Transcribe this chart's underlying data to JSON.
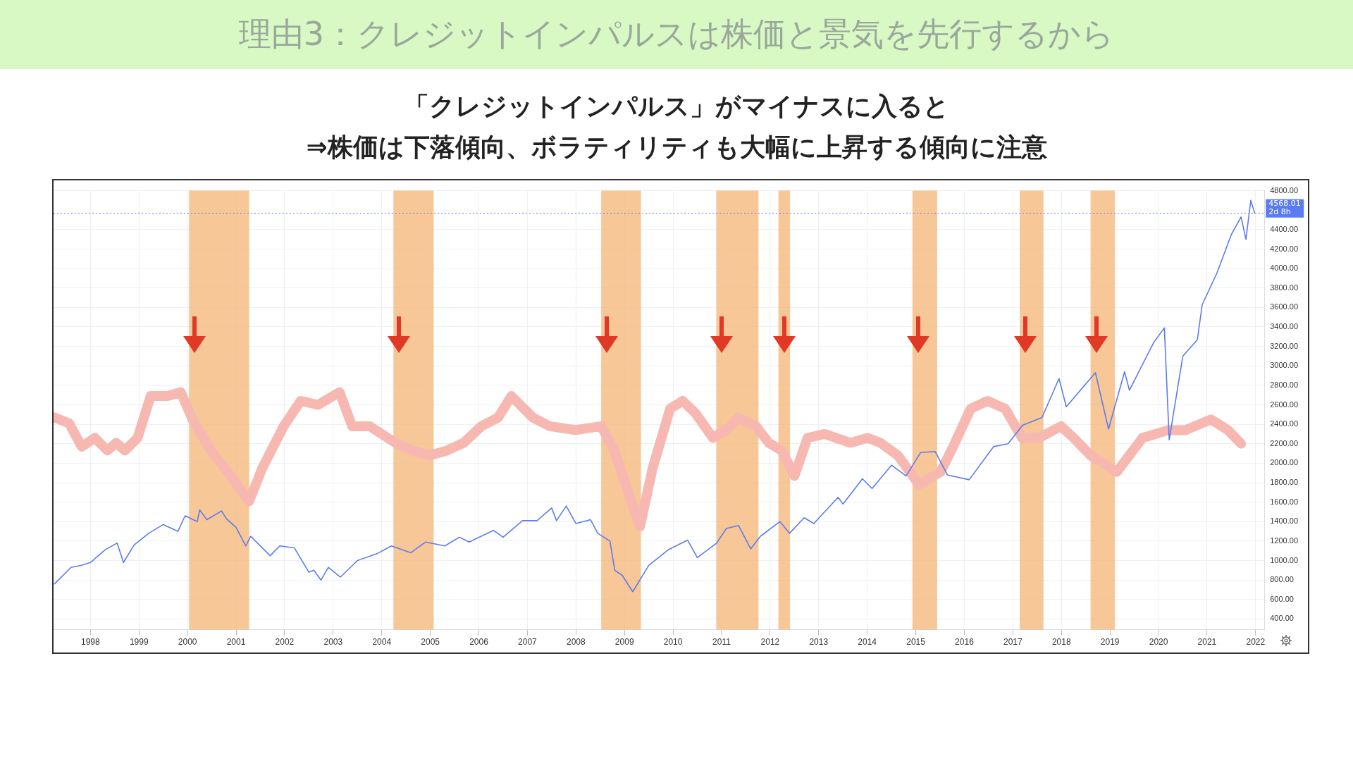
{
  "chart_data": {
    "type": "line",
    "title": "理由3：クレジットインパルスは株価と景気を先行するから",
    "subtitle": "「クレジットインパルス」がマイナスに入ると\n⇒株価は下落傾向、ボラティリティも大幅に上昇する傾向に注意",
    "xlim": [
      1997.24,
      2022.18
    ],
    "xticks": [
      1998,
      1999,
      2000,
      2001,
      2002,
      2003,
      2004,
      2005,
      2006,
      2007,
      2008,
      2009,
      2010,
      2011,
      2012,
      2013,
      2014,
      2015,
      2016,
      2017,
      2018,
      2019,
      2020,
      2021,
      2022
    ],
    "ylim": [
      290,
      4800
    ],
    "yticks": [
      {
        "value": 400,
        "label": "400.00"
      },
      {
        "value": 600,
        "label": "600.00"
      },
      {
        "value": 800,
        "label": "800.00"
      },
      {
        "value": 1000,
        "label": "1000.00"
      },
      {
        "value": 1200,
        "label": "1200.00"
      },
      {
        "value": 1400,
        "label": "1400.00"
      },
      {
        "value": 1600,
        "label": "1600.00"
      },
      {
        "value": 1800,
        "label": "1800.00"
      },
      {
        "value": 2000,
        "label": "2000.00"
      },
      {
        "value": 2200,
        "label": "2200.00"
      },
      {
        "value": 2400,
        "label": "2400.00"
      },
      {
        "value": 2600,
        "label": "2600.00"
      },
      {
        "value": 2800,
        "label": "2800.00"
      },
      {
        "value": 3000,
        "label": "3000.00"
      },
      {
        "value": 3200,
        "label": "3200.00"
      },
      {
        "value": 3400,
        "label": "3400.00"
      },
      {
        "value": 3600,
        "label": "3600.00"
      },
      {
        "value": 3800,
        "label": "3800.00"
      },
      {
        "value": 4000,
        "label": "4000.00"
      },
      {
        "value": 4200,
        "label": "4200.00"
      },
      {
        "value": 4400,
        "label": "4400.00"
      },
      {
        "value": 4800,
        "label": "4800.00"
      }
    ],
    "grid": true,
    "marker": "none",
    "line_style": "solid",
    "series": [
      {
        "color": "#f7b8b2",
        "x": [
          1997.26,
          1997.56,
          1997.82,
          1998.09,
          1998.35,
          1998.53,
          1998.71,
          1998.97,
          1999.24,
          1999.59,
          1999.86,
          2000.12,
          2000.48,
          2000.83,
          2001.27,
          2001.54,
          2001.98,
          2002.33,
          2002.69,
          2003.13,
          2003.39,
          2003.75,
          2004.28,
          2004.63,
          2004.99,
          2005.34,
          2005.69,
          2006.05,
          2006.4,
          2006.67,
          2007.11,
          2007.46,
          2007.99,
          2008.52,
          2008.79,
          2009.14,
          2009.32,
          2009.58,
          2009.94,
          2010.2,
          2010.47,
          2010.82,
          2011.09,
          2011.35,
          2011.71,
          2011.97,
          2012.24,
          2012.5,
          2012.77,
          2013.12,
          2013.65,
          2014.01,
          2014.27,
          2014.63,
          2015.07,
          2015.51,
          2015.77,
          2016.13,
          2016.48,
          2016.84,
          2017.19,
          2017.54,
          2017.99,
          2018.25,
          2018.6,
          2019.14,
          2019.67,
          2020.2,
          2020.55,
          2021.08,
          2021.43,
          2021.7
        ],
        "values": [
          2470,
          2410,
          2170,
          2260,
          2130,
          2210,
          2130,
          2260,
          2690,
          2690,
          2730,
          2430,
          2130,
          1910,
          1610,
          1950,
          2380,
          2640,
          2600,
          2730,
          2380,
          2380,
          2210,
          2130,
          2080,
          2130,
          2210,
          2380,
          2470,
          2690,
          2470,
          2380,
          2340,
          2380,
          2130,
          1610,
          1350,
          1950,
          2560,
          2640,
          2510,
          2260,
          2340,
          2470,
          2380,
          2210,
          2130,
          1870,
          2260,
          2300,
          2210,
          2260,
          2210,
          2080,
          1780,
          1910,
          2170,
          2560,
          2640,
          2560,
          2260,
          2260,
          2380,
          2260,
          2080,
          1910,
          2260,
          2340,
          2340,
          2450,
          2340,
          2200
        ]
      },
      {
        "color": "#5b7cf0",
        "x": [
          1997.26,
          1997.6,
          1997.8,
          1998.0,
          1998.3,
          1998.55,
          1998.68,
          1998.9,
          1999.2,
          1999.5,
          1999.8,
          1999.95,
          2000.2,
          2000.25,
          2000.4,
          2000.7,
          2000.8,
          2001.0,
          2001.2,
          2001.3,
          2001.7,
          2001.9,
          2002.2,
          2002.5,
          2002.6,
          2002.75,
          2002.9,
          2003.15,
          2003.5,
          2003.9,
          2004.2,
          2004.6,
          2004.9,
          2005.3,
          2005.6,
          2005.8,
          2006.3,
          2006.5,
          2006.9,
          2007.2,
          2007.5,
          2007.6,
          2007.8,
          2008.0,
          2008.3,
          2008.45,
          2008.7,
          2008.8,
          2008.95,
          2009.17,
          2009.5,
          2009.9,
          2010.3,
          2010.5,
          2010.9,
          2011.1,
          2011.35,
          2011.6,
          2011.8,
          2012.2,
          2012.4,
          2012.7,
          2012.9,
          2013.4,
          2013.5,
          2013.9,
          2014.1,
          2014.5,
          2014.8,
          2015.1,
          2015.4,
          2015.65,
          2016.1,
          2016.6,
          2016.9,
          2017.2,
          2017.6,
          2017.95,
          2018.1,
          2018.7,
          2018.97,
          2019.3,
          2019.4,
          2019.9,
          2020.12,
          2020.22,
          2020.5,
          2020.8,
          2020.9,
          2021.2,
          2021.5,
          2021.7,
          2021.8,
          2021.9,
          2021.98
        ],
        "values": [
          760,
          930,
          950,
          980,
          1110,
          1180,
          980,
          1160,
          1280,
          1370,
          1300,
          1460,
          1400,
          1520,
          1420,
          1510,
          1430,
          1340,
          1150,
          1250,
          1050,
          1150,
          1130,
          880,
          900,
          800,
          930,
          830,
          1000,
          1070,
          1150,
          1080,
          1190,
          1150,
          1240,
          1190,
          1310,
          1240,
          1410,
          1410,
          1540,
          1410,
          1560,
          1380,
          1420,
          1280,
          1200,
          900,
          850,
          680,
          950,
          1110,
          1210,
          1030,
          1180,
          1330,
          1360,
          1120,
          1250,
          1400,
          1280,
          1440,
          1380,
          1650,
          1580,
          1840,
          1740,
          1980,
          1870,
          2110,
          2120,
          1880,
          1830,
          2170,
          2200,
          2390,
          2470,
          2870,
          2580,
          2930,
          2350,
          2940,
          2750,
          3240,
          3390,
          2240,
          3100,
          3270,
          3630,
          3950,
          4350,
          4530,
          4300,
          4700,
          4570
        ]
      }
    ],
    "bands": [
      {
        "axis": "x",
        "from": 2000.03,
        "to": 2001.27,
        "color": "#f5b97e"
      },
      {
        "axis": "x",
        "from": 2004.24,
        "to": 2005.07,
        "color": "#f5b97e"
      },
      {
        "axis": "x",
        "from": 2008.52,
        "to": 2009.34,
        "color": "#f5b97e"
      },
      {
        "axis": "x",
        "from": 2010.89,
        "to": 2011.76,
        "color": "#f5b97e"
      },
      {
        "axis": "x",
        "from": 2012.17,
        "to": 2012.41,
        "color": "#f5b97e"
      },
      {
        "axis": "x",
        "from": 2014.93,
        "to": 2015.44,
        "color": "#f5b97e"
      },
      {
        "axis": "x",
        "from": 2017.14,
        "to": 2017.63,
        "color": "#f5b97e"
      },
      {
        "axis": "x",
        "from": 2018.6,
        "to": 2019.1,
        "color": "#f5b97e"
      }
    ],
    "ref_lines": [
      {
        "axis": "y",
        "value": 4568.01,
        "label": "4568.01\n2d 8h",
        "color": "#5b7cf0",
        "line_style": "dotted"
      }
    ]
  }
}
